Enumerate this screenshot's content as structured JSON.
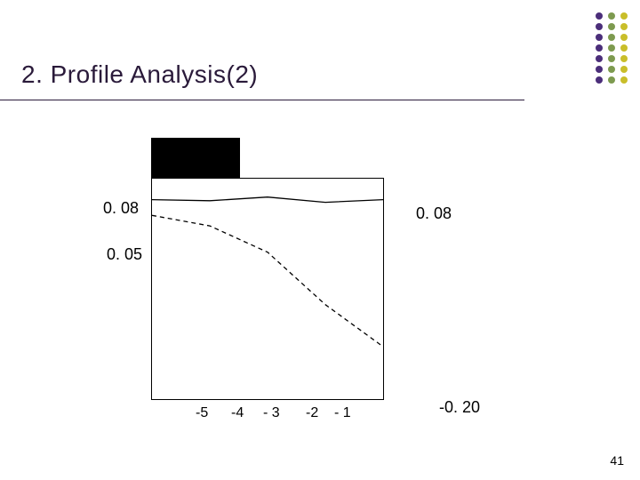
{
  "title": "2. Profile Analysis(2)",
  "page_number": "41",
  "dot_columns": [
    {
      "color": "#4b2e7a",
      "n": 7
    },
    {
      "color": "#7d9a4f",
      "n": 7
    },
    {
      "color": "#c9be2a",
      "n": 7
    }
  ],
  "chart": {
    "type": "line",
    "x_range": [
      -5,
      -1
    ],
    "y_range": [
      -0.3,
      0.12
    ],
    "solid_series": [
      {
        "x": -5,
        "y": 0.08
      },
      {
        "x": -4,
        "y": 0.078
      },
      {
        "x": -3,
        "y": 0.085
      },
      {
        "x": -2,
        "y": 0.075
      },
      {
        "x": -1,
        "y": 0.08
      }
    ],
    "dashed_series": [
      {
        "x": -5,
        "y": 0.05
      },
      {
        "x": -4,
        "y": 0.03
      },
      {
        "x": -3,
        "y": -0.02
      },
      {
        "x": -2,
        "y": -0.12
      },
      {
        "x": -1,
        "y": -0.2
      }
    ],
    "solid_color": "#000000",
    "dashed_color": "#000000",
    "line_width": 1.3,
    "dash_pattern": "5 4",
    "border_color": "#000000",
    "background": "#ffffff"
  },
  "labels": {
    "left_008": "0. 08",
    "right_008": "0. 08",
    "left_005": "0. 05",
    "right_m020": "-0. 20"
  },
  "xticks": [
    "-5",
    "-4",
    "- 3",
    "-2",
    "- 1"
  ]
}
